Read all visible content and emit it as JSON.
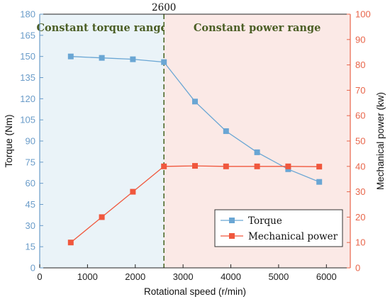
{
  "chart_data": {
    "type": "line",
    "xlabel": "Rotational speed (r/min)",
    "ylabel_left": "Torque (Nm)",
    "ylabel_right": "Mechanical power (kw)",
    "xlim": [
      0,
      6500
    ],
    "ylim_left": [
      0,
      180
    ],
    "ylim_right": [
      0,
      100
    ],
    "x_ticks": [
      0,
      1000,
      2000,
      3000,
      4000,
      5000,
      6000
    ],
    "y_ticks_left": [
      0,
      15,
      30,
      45,
      60,
      75,
      90,
      105,
      120,
      135,
      150,
      165,
      180
    ],
    "y_ticks_right": [
      0,
      10,
      20,
      30,
      40,
      50,
      60,
      70,
      80,
      90,
      100
    ],
    "boundary": {
      "x": 2600,
      "label": "2600"
    },
    "regions": [
      {
        "label": "Constant torque range",
        "from": 0,
        "to": 2600,
        "color": "#eaf3f8"
      },
      {
        "label": "Constant power range",
        "from": 2600,
        "to": 6500,
        "color": "#fbe9e6"
      }
    ],
    "series": [
      {
        "name": "Torque",
        "axis": "left",
        "color": "#6aa6d4",
        "x": [
          650,
          1300,
          1950,
          2600,
          3250,
          3900,
          4550,
          5200,
          5850
        ],
        "values": [
          150,
          149,
          148,
          146,
          118,
          97,
          82,
          70,
          61
        ]
      },
      {
        "name": "Mechanical power",
        "axis": "right",
        "color": "#f0573d",
        "x": [
          650,
          1300,
          1950,
          2600,
          3250,
          3900,
          4550,
          5200,
          5850
        ],
        "values": [
          10,
          20,
          30,
          40,
          40.2,
          40,
          40,
          40,
          39.9
        ]
      }
    ],
    "legend_position": "bottom-right"
  }
}
